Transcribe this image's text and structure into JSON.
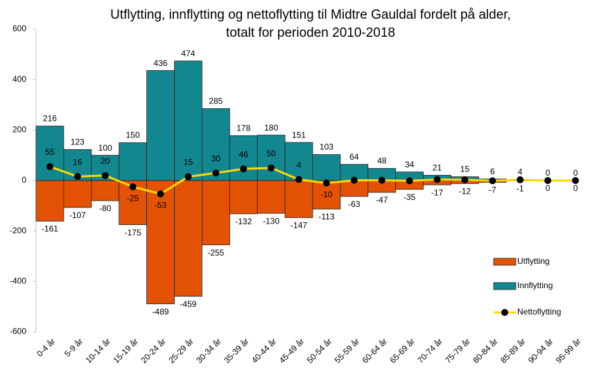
{
  "chart_data": {
    "type": "bar",
    "title": [
      "Utflytting, innflytting og nettoflytting til Midtre Gauldal fordelt på alder,",
      "totalt for perioden 2010-2018"
    ],
    "categories": [
      "0-4 år",
      "5-9 år",
      "10-14 år",
      "15-19 år",
      "20-24 år",
      "25-29 år",
      "30-34 år",
      "35-39 år",
      "40-44 år",
      "45-49 år",
      "50-54 år",
      "55-59 år",
      "60-64 år",
      "65-69 år",
      "70-74 år",
      "75-79 år",
      "80-84 år",
      "85-89 år",
      "90-94 år",
      "95-99 år"
    ],
    "series": [
      {
        "name": "Utflytting",
        "color": "#e35205",
        "kind": "bar",
        "values": [
          -161,
          -107,
          -80,
          -175,
          -489,
          -459,
          -255,
          -132,
          -130,
          -147,
          -113,
          -63,
          -47,
          -35,
          -17,
          -12,
          -7,
          -1,
          0,
          0
        ]
      },
      {
        "name": "Innflytting",
        "color": "#13878f",
        "kind": "bar",
        "values": [
          216,
          123,
          100,
          150,
          436,
          474,
          285,
          178,
          180,
          151,
          103,
          64,
          48,
          34,
          21,
          15,
          6,
          4,
          0,
          0
        ]
      },
      {
        "name": "Nettoflytting",
        "color": "#ffd700",
        "marker_color": "#000000",
        "kind": "line",
        "values": [
          55,
          16,
          20,
          -25,
          -53,
          15,
          30,
          46,
          50,
          4,
          -10,
          1,
          1,
          -1,
          4,
          3,
          -1,
          3,
          0,
          0
        ],
        "value_labels": [
          55,
          16,
          20,
          -25,
          -53,
          15,
          30,
          46,
          50,
          4,
          -10,
          null,
          null,
          null,
          null,
          null,
          null,
          null,
          null,
          null
        ]
      }
    ],
    "ylim": [
      -600,
      600
    ],
    "yticks": [
      -600,
      -400,
      -200,
      0,
      200,
      400,
      600
    ],
    "grid": false,
    "legend": "right"
  }
}
